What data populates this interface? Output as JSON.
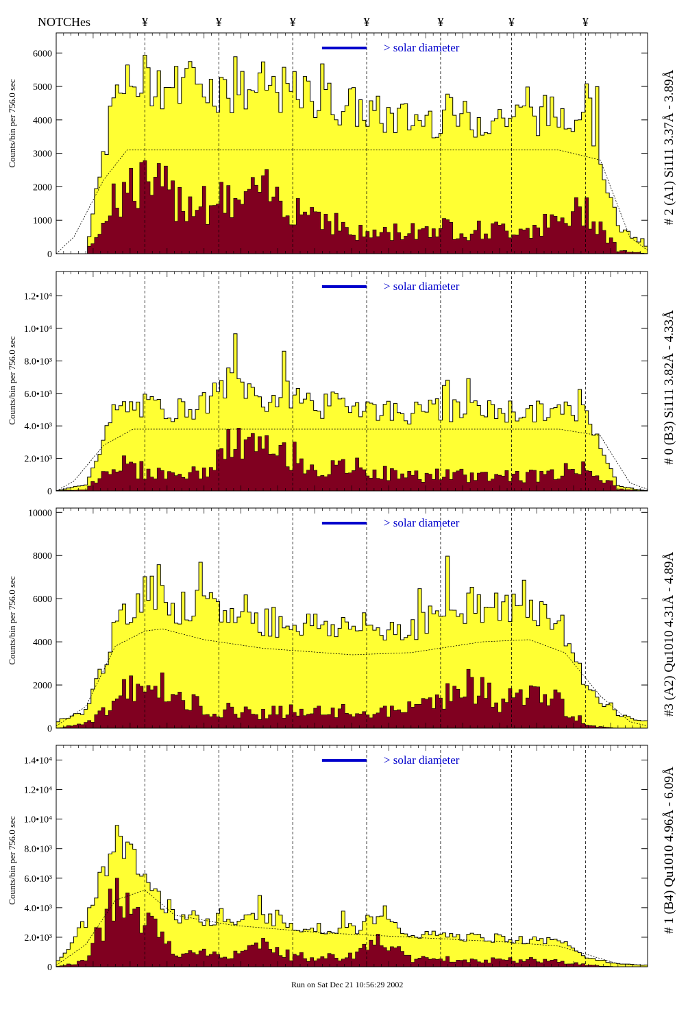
{
  "header": {
    "notches_label": "NOTCHes",
    "notch_symbol": "¥"
  },
  "footer": {
    "run_label": "Run on Sat Dec 21 10:56:29 2002"
  },
  "colors": {
    "total": "#ffff33",
    "line_component": "#800020",
    "edge": "#000000",
    "accent": "#0000cc"
  },
  "chart_data": [
    {
      "type": "area",
      "title": "# 2 (A1) Si111 3.37Å - 3.89Å",
      "ylabel": "Counts/bin per 756.0 sec",
      "legend": "> solar diameter",
      "ylim": [
        0,
        6600
      ],
      "yticks": [
        0,
        1000,
        2000,
        3000,
        4000,
        5000,
        6000
      ],
      "ytick_labels": [
        "0",
        "1000",
        "2000",
        "3000",
        "4000",
        "5000",
        "6000"
      ],
      "notch_x": [
        0.15,
        0.275,
        0.4,
        0.525,
        0.65,
        0.77,
        0.895
      ],
      "profile": {
        "x": [
          0,
          0.05,
          0.1,
          0.15,
          0.2,
          0.25,
          0.3,
          0.35,
          0.4,
          0.45,
          0.5,
          0.55,
          0.6,
          0.65,
          0.7,
          0.75,
          0.8,
          0.85,
          0.9,
          0.95,
          1
        ],
        "y": [
          0,
          0,
          4800,
          5200,
          5000,
          5100,
          4800,
          5000,
          4800,
          4600,
          4400,
          4100,
          4000,
          4100,
          4000,
          4100,
          4100,
          4200,
          4400,
          800,
          200
        ]
      },
      "lines_profile": {
        "x": [
          0,
          0.05,
          0.1,
          0.15,
          0.2,
          0.25,
          0.3,
          0.35,
          0.4,
          0.45,
          0.5,
          0.55,
          0.6,
          0.65,
          0.7,
          0.75,
          0.8,
          0.85,
          0.9,
          0.95,
          1
        ],
        "y": [
          0,
          0,
          1800,
          2100,
          1700,
          1600,
          1500,
          1800,
          1500,
          1200,
          600,
          600,
          700,
          800,
          700,
          700,
          800,
          900,
          1400,
          100,
          0
        ]
      },
      "continuum": {
        "x": [
          0,
          0.03,
          0.08,
          0.12,
          0.2,
          0.85,
          0.92,
          0.97,
          1
        ],
        "y": [
          0,
          500,
          2200,
          3100,
          3100,
          3100,
          2800,
          500,
          100
        ]
      }
    },
    {
      "type": "area",
      "title": "# 0 (B3) Si111 3.82Å - 4.33Å",
      "ylabel": "Counts/bin per 756.0 sec",
      "legend": "> solar diameter",
      "ylim": [
        0,
        13500
      ],
      "yticks": [
        0,
        2000,
        4000,
        6000,
        8000,
        10000,
        12000
      ],
      "ytick_labels": [
        "0",
        "2.0•10³",
        "4.0•10³",
        "6.0•10³",
        "8.0•10³",
        "1.0•10⁴",
        "1.2•10⁴"
      ],
      "notch_x": [
        0.15,
        0.275,
        0.4,
        0.525,
        0.65,
        0.77,
        0.895
      ],
      "profile": {
        "x": [
          0,
          0.05,
          0.1,
          0.15,
          0.2,
          0.25,
          0.3,
          0.35,
          0.4,
          0.45,
          0.5,
          0.55,
          0.6,
          0.65,
          0.7,
          0.75,
          0.8,
          0.85,
          0.9,
          0.95,
          1
        ],
        "y": [
          0,
          400,
          5000,
          5200,
          5000,
          5300,
          7000,
          5500,
          6000,
          5200,
          5500,
          5000,
          4800,
          5000,
          4800,
          5000,
          4800,
          4900,
          4800,
          300,
          0
        ]
      },
      "lines_profile": {
        "x": [
          0,
          0.05,
          0.1,
          0.15,
          0.2,
          0.25,
          0.3,
          0.35,
          0.4,
          0.45,
          0.5,
          0.55,
          0.6,
          0.65,
          0.7,
          0.75,
          0.8,
          0.85,
          0.9,
          0.95,
          1
        ],
        "y": [
          0,
          100,
          1800,
          1200,
          1000,
          1100,
          3000,
          2500,
          2200,
          1200,
          1500,
          1100,
          900,
          1000,
          900,
          1000,
          900,
          1100,
          1600,
          100,
          0
        ]
      },
      "continuum": {
        "x": [
          0,
          0.03,
          0.08,
          0.13,
          0.2,
          0.85,
          0.92,
          0.97,
          1
        ],
        "y": [
          0,
          600,
          2800,
          3800,
          3800,
          3800,
          3400,
          500,
          100
        ]
      }
    },
    {
      "type": "area",
      "title": "#3 (A2) Qu1010 4.31Å - 4.89Å",
      "ylabel": "Counts/bin per 756.0 sec",
      "legend": "> solar diameter",
      "ylim": [
        0,
        10200
      ],
      "yticks": [
        0,
        2000,
        4000,
        6000,
        8000,
        10000
      ],
      "ytick_labels": [
        "0",
        "2000",
        "4000",
        "6000",
        "8000",
        "10000"
      ],
      "notch_x": [
        0.15,
        0.275,
        0.4,
        0.525,
        0.65,
        0.77,
        0.895
      ],
      "profile": {
        "x": [
          0,
          0.05,
          0.1,
          0.15,
          0.2,
          0.25,
          0.3,
          0.35,
          0.4,
          0.45,
          0.5,
          0.55,
          0.6,
          0.65,
          0.7,
          0.75,
          0.8,
          0.85,
          0.9,
          0.95,
          1
        ],
        "y": [
          300,
          800,
          4500,
          6500,
          5500,
          5600,
          5200,
          5000,
          4900,
          4800,
          4700,
          4600,
          4700,
          5200,
          5800,
          5500,
          5700,
          5000,
          1800,
          600,
          300
        ]
      },
      "lines_profile": {
        "x": [
          0,
          0.05,
          0.1,
          0.15,
          0.2,
          0.25,
          0.3,
          0.35,
          0.4,
          0.45,
          0.5,
          0.55,
          0.6,
          0.65,
          0.7,
          0.75,
          0.8,
          0.85,
          0.9,
          0.95,
          1
        ],
        "y": [
          0,
          200,
          1200,
          2500,
          1300,
          1000,
          800,
          700,
          800,
          700,
          800,
          700,
          900,
          1500,
          2000,
          1200,
          1600,
          1200,
          100,
          0,
          0
        ]
      },
      "continuum": {
        "x": [
          0,
          0.05,
          0.1,
          0.15,
          0.18,
          0.25,
          0.35,
          0.5,
          0.6,
          0.72,
          0.8,
          0.86,
          0.92,
          0.97,
          1
        ],
        "y": [
          100,
          1000,
          3800,
          4500,
          4600,
          4100,
          3700,
          3400,
          3500,
          4000,
          4100,
          3500,
          1500,
          300,
          100
        ]
      }
    },
    {
      "type": "area",
      "title": "# 1 (B4) Qu1010 4.96Å - 6.09Å",
      "ylabel": "Counts/bin per 756.0 sec",
      "legend": "> solar diameter",
      "ylim": [
        0,
        15000
      ],
      "yticks": [
        0,
        2000,
        4000,
        6000,
        8000,
        10000,
        12000,
        14000
      ],
      "ytick_labels": [
        "0",
        "2.0•10³",
        "4.0•10³",
        "6.0•10³",
        "8.0•10³",
        "1.0•10⁴",
        "1.2•10⁴",
        "1.4•10⁴"
      ],
      "notch_x": [
        0.15,
        0.275,
        0.4,
        0.525,
        0.65,
        0.77,
        0.895
      ],
      "profile": {
        "x": [
          0,
          0.05,
          0.1,
          0.15,
          0.2,
          0.25,
          0.3,
          0.35,
          0.4,
          0.45,
          0.5,
          0.55,
          0.6,
          0.65,
          0.7,
          0.75,
          0.8,
          0.85,
          0.9,
          0.95,
          1
        ],
        "y": [
          200,
          3000,
          9000,
          6000,
          3500,
          3200,
          3000,
          3500,
          2800,
          2600,
          2500,
          3200,
          2200,
          2100,
          2000,
          1900,
          1800,
          1700,
          600,
          200,
          100
        ]
      },
      "lines_profile": {
        "x": [
          0,
          0.05,
          0.1,
          0.15,
          0.2,
          0.25,
          0.3,
          0.35,
          0.4,
          0.45,
          0.5,
          0.55,
          0.6,
          0.65,
          0.7,
          0.75,
          0.8,
          0.85,
          0.9,
          0.95,
          1
        ],
        "y": [
          0,
          400,
          4500,
          3000,
          1000,
          900,
          800,
          1400,
          700,
          600,
          700,
          2000,
          500,
          500,
          500,
          400,
          500,
          400,
          100,
          0,
          0
        ]
      },
      "continuum": {
        "x": [
          0,
          0.05,
          0.1,
          0.15,
          0.2,
          0.3,
          0.45,
          0.6,
          0.75,
          0.85,
          0.9,
          0.95,
          1
        ],
        "y": [
          100,
          1500,
          4500,
          5200,
          3500,
          2800,
          2300,
          2000,
          1700,
          1400,
          800,
          200,
          100
        ]
      }
    }
  ]
}
